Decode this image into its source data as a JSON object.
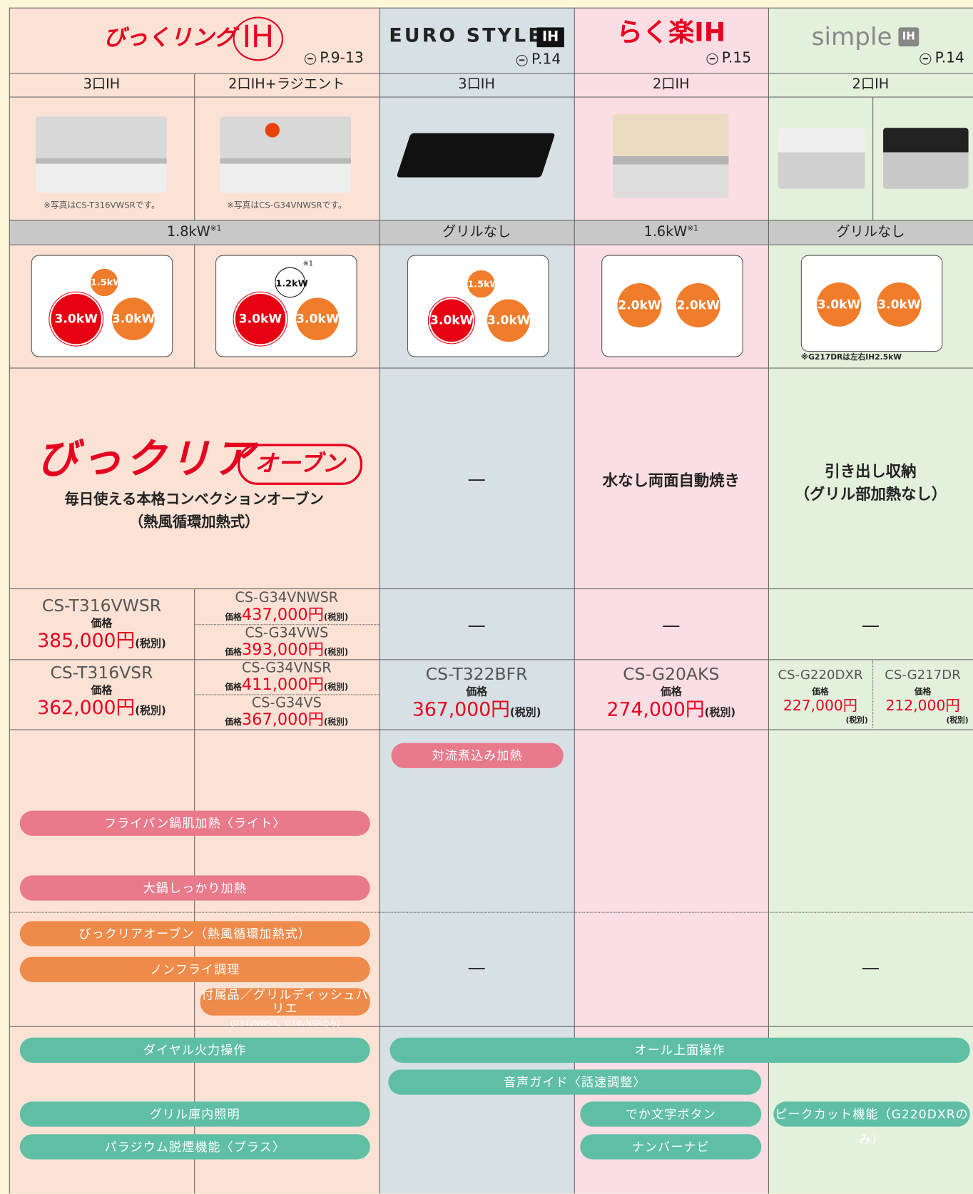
{
  "brands": [
    {
      "name": "びっくリング",
      "mark": "IH",
      "page": "P.9-13"
    },
    {
      "name": "EURO STYLE",
      "mark": "IH",
      "page": "P.14"
    },
    {
      "name": "らく楽IH",
      "page": "P.15"
    },
    {
      "name": "simple",
      "mark": "IH",
      "page": "P.14"
    }
  ],
  "burner_types": [
    "3口IH",
    "2口IH+ラジエント",
    "3口IH",
    "2口IH",
    "2口IH"
  ],
  "photo_notes": [
    "※写真はCS-T316VWSRです。",
    "※写真はCS-G34VNWSRです。"
  ],
  "grill_power": [
    {
      "text": "1.8kW",
      "note": "※1"
    },
    {
      "text": "グリルなし"
    },
    {
      "text": "1.6kW",
      "note": "※1"
    },
    {
      "text": "グリルなし"
    }
  ],
  "burner_layouts": [
    {
      "burners": [
        "1.5kW",
        "3.0kW",
        "3.0kW"
      ]
    },
    {
      "burners": [
        "1.2kW",
        "3.0kW",
        "3.0kW"
      ],
      "note": "※1"
    },
    {
      "burners": [
        "1.5kW",
        "3.0kW",
        "3.0kW"
      ]
    },
    {
      "burners": [
        "2.0kW",
        "2.0kW"
      ]
    },
    {
      "burners": [
        "3.0kW",
        "3.0kW"
      ],
      "note": "※G217DRは左右IH2.5kW"
    }
  ],
  "grill_features": {
    "bikkuri": {
      "title": "びっクリア",
      "badge": "オーブン",
      "desc": [
        "毎日使える本格コンベクションオーブン",
        "（熱風循環加熱式）"
      ]
    },
    "euro": "—",
    "raku": "水なし両面自動焼き",
    "simple": [
      "引き出し収納",
      "（グリル部加熱なし）"
    ]
  },
  "models": {
    "row1": {
      "a": {
        "model": "CS-T316VWSR",
        "price_label": "価格",
        "price": "385,000円",
        "tax": "(税別)"
      },
      "b1": {
        "model": "CS-G34VNWSR",
        "price_label": "価格",
        "price": "437,000円",
        "tax": "(税別)"
      },
      "b2": {
        "model": "CS-G34VWS",
        "price_label": "価格",
        "price": "393,000円",
        "tax": "(税別)"
      },
      "euro": "—",
      "raku": "—",
      "simple": "—"
    },
    "row2": {
      "a": {
        "model": "CS-T316VSR",
        "price_label": "価格",
        "price": "362,000円",
        "tax": "(税別)"
      },
      "b1": {
        "model": "CS-G34VNSR",
        "price_label": "価格",
        "price": "411,000円",
        "tax": "(税別)"
      },
      "b2": {
        "model": "CS-G34VS",
        "price_label": "価格",
        "price": "367,000円",
        "tax": "(税別)"
      },
      "euro": {
        "model": "CS-T322BFR",
        "price_label": "価格",
        "price": "367,000円",
        "tax": "(税別)"
      },
      "raku": {
        "model": "CS-G20AKS",
        "price_label": "価格",
        "price": "274,000円",
        "tax": "(税別)"
      },
      "simple1": {
        "model": "CS-G220DXR",
        "price_label": "価格",
        "price": "227,000円",
        "tax": "(税別)"
      },
      "simple2": {
        "model": "CS-G217DR",
        "price_label": "価格",
        "price": "212,000円",
        "tax": "(税別)"
      }
    }
  },
  "cook_dashes": [
    "—",
    "—"
  ],
  "features": [
    {
      "text": "対流煮込み加熱",
      "color": "#e97a8c"
    },
    {
      "text": "フライパン鍋肌加熱〈ライト〉",
      "color": "#e97a8c"
    },
    {
      "text": "大鍋しっかり加熱",
      "color": "#e97a8c"
    },
    {
      "text": "びっクリアオーブン（熱風循環加熱式）",
      "color": "#ee8a4a"
    },
    {
      "text": "ノンフライ調理",
      "color": "#ee8a4a"
    },
    {
      "text": "付属品／グリルディッシュバリエ",
      "sub": "(G34VNWSR、G34VNSRのみ)",
      "color": "#ee8a4a"
    },
    {
      "text": "ダイヤル火力操作",
      "color": "#5fbfa5"
    },
    {
      "text": "オール上面操作",
      "color": "#5fbfa5"
    },
    {
      "text": "音声ガイド〈話速調整〉",
      "color": "#5fbfa5"
    },
    {
      "text": "グリル庫内照明",
      "color": "#5fbfa5"
    },
    {
      "text": "でか文字ボタン",
      "color": "#5fbfa5"
    },
    {
      "text": "ピークカット機能（G220DXRのみ）",
      "color": "#5fbfa5"
    },
    {
      "text": "パラジウム脱煙機能〈プラス〉",
      "color": "#5fbfa5"
    },
    {
      "text": "ナンバーナビ",
      "color": "#5fbfa5"
    }
  ]
}
